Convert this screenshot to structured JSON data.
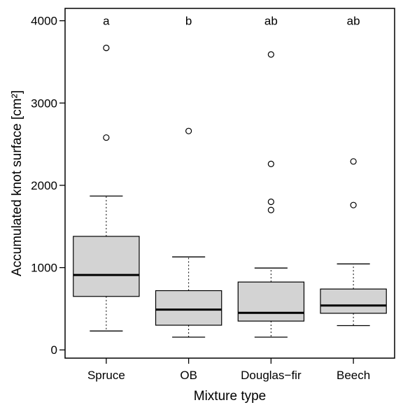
{
  "chart_data": {
    "type": "box",
    "xlabel": "Mixture type",
    "ylabel": "Accumulated knot surface [cm²]",
    "ylim": [
      -100,
      4150
    ],
    "yticks": [
      0,
      1000,
      2000,
      3000,
      4000
    ],
    "yticks_labels": [
      "0",
      "1000",
      "2000",
      "3000",
      "4000"
    ],
    "categories": [
      "Spruce",
      "OB",
      "Douglas−fir",
      "Beech"
    ],
    "significance_letters": [
      "a",
      "b",
      "ab",
      "ab"
    ],
    "box_fill": "#d3d3d3",
    "boxes": [
      {
        "whisker_low": 230,
        "q1": 650,
        "median": 910,
        "q3": 1380,
        "whisker_high": 1870,
        "outliers": [
          2580,
          3670
        ]
      },
      {
        "whisker_low": 155,
        "q1": 300,
        "median": 490,
        "q3": 720,
        "whisker_high": 1130,
        "outliers": [
          2660
        ]
      },
      {
        "whisker_low": 155,
        "q1": 350,
        "median": 450,
        "q3": 825,
        "whisker_high": 995,
        "outliers": [
          1700,
          1800,
          2260,
          3590
        ]
      },
      {
        "whisker_low": 295,
        "q1": 445,
        "median": 540,
        "q3": 740,
        "whisker_high": 1045,
        "outliers": [
          1760,
          2290
        ]
      }
    ]
  }
}
